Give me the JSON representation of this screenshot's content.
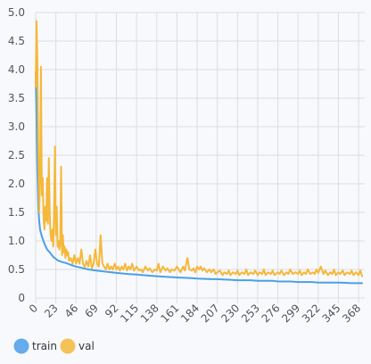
{
  "chart_data": {
    "type": "line",
    "title": "",
    "xlabel": "",
    "ylabel": "",
    "xlim": [
      0,
      375
    ],
    "ylim": [
      0,
      5.0
    ],
    "x_ticks": [
      0,
      23,
      46,
      69,
      92,
      115,
      138,
      161,
      184,
      207,
      230,
      253,
      276,
      299,
      322,
      345,
      368
    ],
    "y_ticks": [
      0,
      0.5,
      1.0,
      1.5,
      2.0,
      2.5,
      3.0,
      3.5,
      4.0,
      4.5,
      5.0
    ],
    "y_tick_labels": [
      "0",
      "0.5",
      "1.0",
      "1.5",
      "2.0",
      "2.5",
      "3.0",
      "3.5",
      "4.0",
      "4.5",
      "5.0"
    ],
    "grid": true,
    "legend_position": "bottom-left",
    "series": [
      {
        "name": "train",
        "color": "#4a9fe8",
        "points": [
          [
            0,
            3.95
          ],
          [
            1,
            3.2
          ],
          [
            2,
            2.2
          ],
          [
            3,
            1.6
          ],
          [
            4,
            1.35
          ],
          [
            5,
            1.2
          ],
          [
            7,
            1.08
          ],
          [
            10,
            0.95
          ],
          [
            13,
            0.85
          ],
          [
            16,
            0.8
          ],
          [
            20,
            0.72
          ],
          [
            25,
            0.66
          ],
          [
            30,
            0.63
          ],
          [
            35,
            0.61
          ],
          [
            40,
            0.58
          ],
          [
            46,
            0.55
          ],
          [
            52,
            0.53
          ],
          [
            60,
            0.5
          ],
          [
            69,
            0.48
          ],
          [
            80,
            0.46
          ],
          [
            92,
            0.44
          ],
          [
            105,
            0.42
          ],
          [
            115,
            0.41
          ],
          [
            130,
            0.39
          ],
          [
            138,
            0.38
          ],
          [
            150,
            0.37
          ],
          [
            161,
            0.36
          ],
          [
            175,
            0.35
          ],
          [
            184,
            0.34
          ],
          [
            200,
            0.33
          ],
          [
            207,
            0.33
          ],
          [
            220,
            0.32
          ],
          [
            230,
            0.31
          ],
          [
            245,
            0.31
          ],
          [
            253,
            0.3
          ],
          [
            270,
            0.3
          ],
          [
            276,
            0.29
          ],
          [
            290,
            0.29
          ],
          [
            299,
            0.28
          ],
          [
            315,
            0.28
          ],
          [
            322,
            0.27
          ],
          [
            335,
            0.27
          ],
          [
            345,
            0.27
          ],
          [
            360,
            0.26
          ],
          [
            368,
            0.26
          ],
          [
            372,
            0.26
          ]
        ]
      },
      {
        "name": "val",
        "color": "#f5b839",
        "points": [
          [
            0,
            3.7
          ],
          [
            1,
            4.85
          ],
          [
            2,
            4.1
          ],
          [
            3,
            2.6
          ],
          [
            4,
            1.5
          ],
          [
            5,
            2.1
          ],
          [
            6,
            4.05
          ],
          [
            7,
            1.8
          ],
          [
            8,
            2.1
          ],
          [
            9,
            1.4
          ],
          [
            10,
            1.2
          ],
          [
            11,
            1.6
          ],
          [
            12,
            1.35
          ],
          [
            13,
            2.1
          ],
          [
            14,
            1.3
          ],
          [
            15,
            2.45
          ],
          [
            16,
            1.5
          ],
          [
            17,
            1.1
          ],
          [
            18,
            1.0
          ],
          [
            19,
            1.2
          ],
          [
            20,
            0.9
          ],
          [
            21,
            1.5
          ],
          [
            22,
            2.65
          ],
          [
            23,
            1.1
          ],
          [
            24,
            1.6
          ],
          [
            25,
            0.9
          ],
          [
            26,
            1.0
          ],
          [
            27,
            0.85
          ],
          [
            28,
            0.95
          ],
          [
            29,
            2.3
          ],
          [
            30,
            0.75
          ],
          [
            31,
            1.1
          ],
          [
            32,
            0.8
          ],
          [
            33,
            0.9
          ],
          [
            34,
            0.7
          ],
          [
            35,
            0.85
          ],
          [
            36,
            0.75
          ],
          [
            37,
            0.8
          ],
          [
            38,
            0.65
          ],
          [
            40,
            0.7
          ],
          [
            42,
            0.6
          ],
          [
            44,
            0.75
          ],
          [
            46,
            0.6
          ],
          [
            48,
            0.7
          ],
          [
            50,
            0.6
          ],
          [
            52,
            0.85
          ],
          [
            54,
            0.6
          ],
          [
            56,
            0.55
          ],
          [
            58,
            0.65
          ],
          [
            60,
            0.55
          ],
          [
            62,
            0.75
          ],
          [
            64,
            0.52
          ],
          [
            66,
            0.6
          ],
          [
            68,
            0.85
          ],
          [
            70,
            0.6
          ],
          [
            72,
            0.55
          ],
          [
            74,
            1.1
          ],
          [
            76,
            0.6
          ],
          [
            78,
            0.55
          ],
          [
            80,
            0.5
          ],
          [
            82,
            0.6
          ],
          [
            84,
            0.5
          ],
          [
            86,
            0.55
          ],
          [
            88,
            0.5
          ],
          [
            90,
            0.6
          ],
          [
            92,
            0.5
          ],
          [
            94,
            0.55
          ],
          [
            96,
            0.48
          ],
          [
            98,
            0.55
          ],
          [
            100,
            0.5
          ],
          [
            102,
            0.6
          ],
          [
            104,
            0.48
          ],
          [
            106,
            0.55
          ],
          [
            108,
            0.5
          ],
          [
            110,
            0.6
          ],
          [
            112,
            0.48
          ],
          [
            115,
            0.55
          ],
          [
            118,
            0.48
          ],
          [
            120,
            0.5
          ],
          [
            122,
            0.45
          ],
          [
            125,
            0.55
          ],
          [
            128,
            0.48
          ],
          [
            130,
            0.52
          ],
          [
            133,
            0.45
          ],
          [
            136,
            0.5
          ],
          [
            138,
            0.48
          ],
          [
            140,
            0.6
          ],
          [
            142,
            0.45
          ],
          [
            145,
            0.55
          ],
          [
            148,
            0.48
          ],
          [
            150,
            0.52
          ],
          [
            153,
            0.45
          ],
          [
            155,
            0.5
          ],
          [
            158,
            0.48
          ],
          [
            161,
            0.55
          ],
          [
            163,
            0.5
          ],
          [
            165,
            0.45
          ],
          [
            168,
            0.55
          ],
          [
            170,
            0.48
          ],
          [
            173,
            0.7
          ],
          [
            175,
            0.5
          ],
          [
            178,
            0.48
          ],
          [
            180,
            0.52
          ],
          [
            182,
            0.45
          ],
          [
            184,
            0.55
          ],
          [
            186,
            0.5
          ],
          [
            188,
            0.55
          ],
          [
            190,
            0.48
          ],
          [
            192,
            0.52
          ],
          [
            195,
            0.45
          ],
          [
            198,
            0.5
          ],
          [
            200,
            0.45
          ],
          [
            203,
            0.5
          ],
          [
            205,
            0.42
          ],
          [
            207,
            0.45
          ],
          [
            210,
            0.48
          ],
          [
            213,
            0.4
          ],
          [
            215,
            0.45
          ],
          [
            218,
            0.42
          ],
          [
            220,
            0.48
          ],
          [
            222,
            0.4
          ],
          [
            225,
            0.45
          ],
          [
            228,
            0.42
          ],
          [
            230,
            0.48
          ],
          [
            232,
            0.4
          ],
          [
            235,
            0.45
          ],
          [
            238,
            0.42
          ],
          [
            240,
            0.5
          ],
          [
            242,
            0.4
          ],
          [
            245,
            0.45
          ],
          [
            248,
            0.42
          ],
          [
            250,
            0.48
          ],
          [
            253,
            0.4
          ],
          [
            255,
            0.45
          ],
          [
            258,
            0.42
          ],
          [
            260,
            0.5
          ],
          [
            262,
            0.4
          ],
          [
            265,
            0.45
          ],
          [
            268,
            0.42
          ],
          [
            270,
            0.48
          ],
          [
            272,
            0.4
          ],
          [
            276,
            0.45
          ],
          [
            278,
            0.42
          ],
          [
            280,
            0.48
          ],
          [
            283,
            0.4
          ],
          [
            286,
            0.45
          ],
          [
            288,
            0.42
          ],
          [
            290,
            0.5
          ],
          [
            293,
            0.42
          ],
          [
            296,
            0.45
          ],
          [
            299,
            0.42
          ],
          [
            301,
            0.48
          ],
          [
            303,
            0.4
          ],
          [
            306,
            0.45
          ],
          [
            308,
            0.42
          ],
          [
            310,
            0.5
          ],
          [
            313,
            0.42
          ],
          [
            316,
            0.45
          ],
          [
            318,
            0.42
          ],
          [
            320,
            0.5
          ],
          [
            322,
            0.44
          ],
          [
            325,
            0.55
          ],
          [
            328,
            0.42
          ],
          [
            330,
            0.48
          ],
          [
            333,
            0.4
          ],
          [
            336,
            0.45
          ],
          [
            338,
            0.42
          ],
          [
            340,
            0.5
          ],
          [
            342,
            0.4
          ],
          [
            345,
            0.45
          ],
          [
            347,
            0.42
          ],
          [
            350,
            0.48
          ],
          [
            352,
            0.4
          ],
          [
            355,
            0.45
          ],
          [
            358,
            0.42
          ],
          [
            360,
            0.48
          ],
          [
            362,
            0.4
          ],
          [
            365,
            0.45
          ],
          [
            368,
            0.4
          ],
          [
            370,
            0.48
          ],
          [
            372,
            0.38
          ]
        ]
      }
    ]
  }
}
